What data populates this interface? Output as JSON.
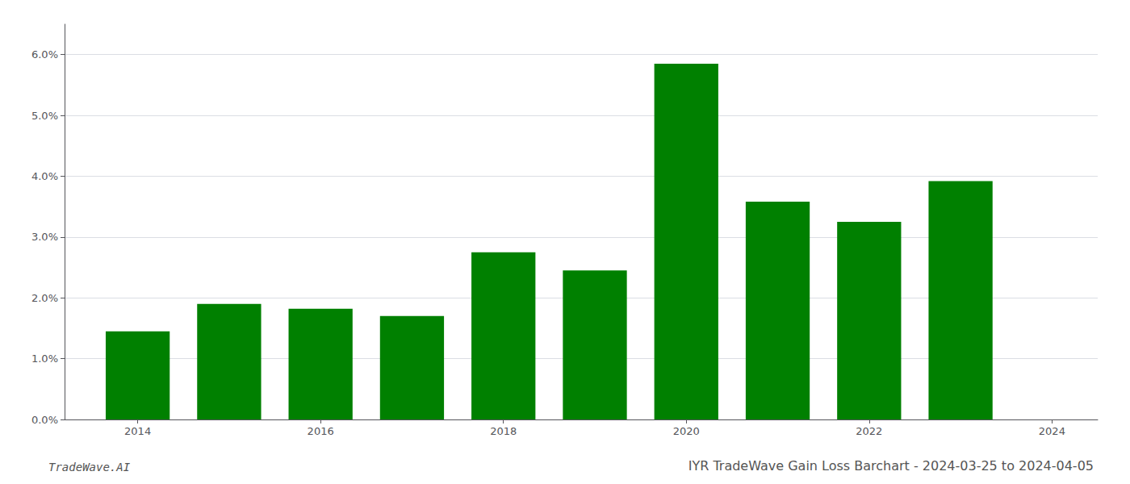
{
  "chart_data": {
    "type": "bar",
    "title": "IYR TradeWave Gain Loss Barchart - 2024-03-25 to 2024-04-05",
    "annotations": [
      "TradeWave.AI"
    ],
    "x": [
      2014,
      2015,
      2016,
      2017,
      2018,
      2019,
      2020,
      2021,
      2022,
      2023
    ],
    "values": [
      0.0145,
      0.019,
      0.0182,
      0.017,
      0.0275,
      0.0245,
      0.0585,
      0.0358,
      0.0325,
      0.0392
    ],
    "color": "#008000",
    "xlim": [
      2013.2,
      2024.5
    ],
    "xticks": [
      2014,
      2016,
      2018,
      2020,
      2022,
      2024
    ],
    "ylim": [
      0,
      0.065
    ],
    "yticks": [
      {
        "value": 0.0,
        "label": "0.0%"
      },
      {
        "value": 0.01,
        "label": "1.0%"
      },
      {
        "value": 0.02,
        "label": "2.0%"
      },
      {
        "value": 0.03,
        "label": "3.0%"
      },
      {
        "value": 0.04,
        "label": "4.0%"
      },
      {
        "value": 0.05,
        "label": "5.0%"
      },
      {
        "value": 0.06,
        "label": "6.0%"
      }
    ],
    "grid": true
  }
}
